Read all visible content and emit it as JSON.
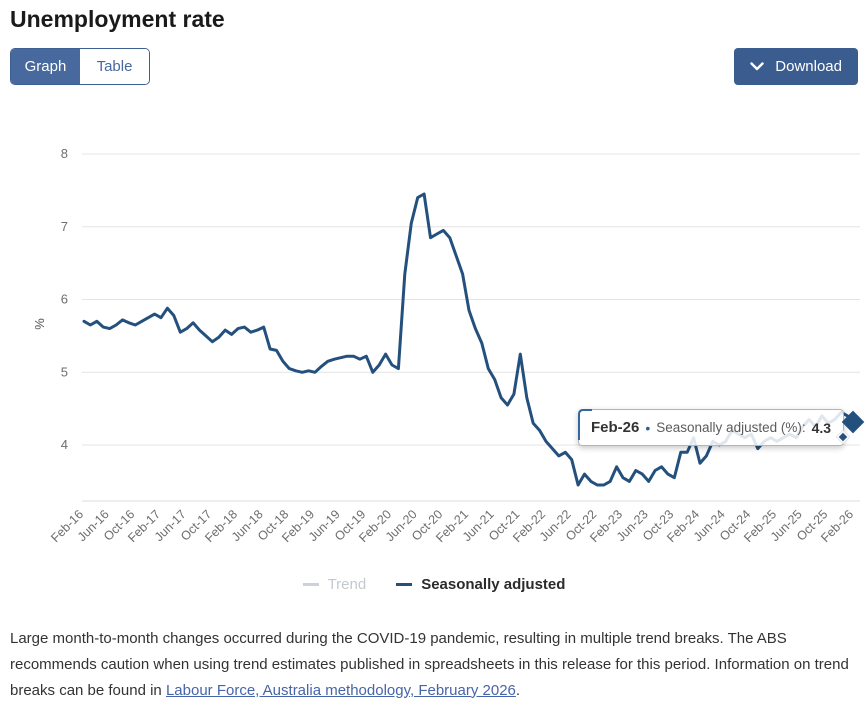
{
  "page": {
    "title": "Unemployment rate"
  },
  "toolbar": {
    "view_toggle": {
      "graph_label": "Graph",
      "table_label": "Table",
      "active": "Graph"
    },
    "download_label": "Download"
  },
  "chart_data": {
    "type": "line",
    "title": "Unemployment rate",
    "ylabel": "%",
    "yticks": [
      4,
      5,
      6,
      7,
      8
    ],
    "ylim": [
      3.2,
      8.4
    ],
    "grid": "horizontal",
    "frequency": "monthly",
    "x_range": [
      "Feb-16",
      "Feb-26"
    ],
    "x_tick_step_months": 4,
    "x_tick_labels": [
      "Feb-16",
      "Jun-16",
      "Oct-16",
      "Feb-17",
      "Jun-17",
      "Oct-17",
      "Feb-18",
      "Jun-18",
      "Oct-18",
      "Feb-19",
      "Jun-19",
      "Oct-19",
      "Feb-20",
      "Jun-20",
      "Oct-20",
      "Feb-21",
      "Jun-21",
      "Oct-21",
      "Feb-22",
      "Jun-22",
      "Oct-22",
      "Feb-23",
      "Jun-23",
      "Oct-23",
      "Feb-24",
      "Jun-24",
      "Oct-24",
      "Feb-25",
      "Jun-25",
      "Oct-25",
      "Feb-26"
    ],
    "legend_position": "bottom",
    "series": [
      {
        "name": "Trend",
        "visible": false,
        "color": "#ccd2d8"
      },
      {
        "name": "Seasonally adjusted",
        "visible": true,
        "unit": "%",
        "color": "#24507d",
        "values": [
          5.7,
          5.65,
          5.7,
          5.62,
          5.6,
          5.65,
          5.72,
          5.68,
          5.65,
          5.7,
          5.75,
          5.8,
          5.75,
          5.88,
          5.78,
          5.55,
          5.6,
          5.68,
          5.58,
          5.5,
          5.42,
          5.48,
          5.58,
          5.52,
          5.6,
          5.62,
          5.55,
          5.58,
          5.62,
          5.32,
          5.3,
          5.15,
          5.05,
          5.02,
          5.0,
          5.02,
          5.0,
          5.08,
          5.15,
          5.18,
          5.2,
          5.22,
          5.22,
          5.18,
          5.22,
          5.0,
          5.1,
          5.25,
          5.1,
          5.05,
          6.35,
          7.05,
          7.4,
          7.45,
          6.85,
          6.9,
          6.95,
          6.85,
          6.6,
          6.35,
          5.85,
          5.6,
          5.4,
          5.05,
          4.9,
          4.65,
          4.55,
          4.7,
          5.25,
          4.65,
          4.3,
          4.2,
          4.05,
          3.95,
          3.85,
          3.9,
          3.8,
          3.45,
          3.6,
          3.5,
          3.45,
          3.45,
          3.5,
          3.7,
          3.55,
          3.5,
          3.65,
          3.6,
          3.5,
          3.65,
          3.7,
          3.6,
          3.55,
          3.9,
          3.9,
          4.1,
          3.75,
          3.85,
          4.05,
          4.0,
          4.05,
          4.2,
          4.15,
          4.1,
          4.15,
          3.95,
          4.05,
          4.1,
          4.05,
          4.1,
          4.15,
          4.1,
          4.25,
          4.35,
          4.25,
          4.4,
          4.3,
          4.35,
          4.45,
          4.4,
          4.3
        ]
      }
    ],
    "end_point": {
      "x": "Feb-26",
      "value": 4.3,
      "marker": "diamond"
    }
  },
  "tooltip": {
    "period": "Feb-26",
    "separator": "•",
    "series_label": "Seasonally adjusted (%):",
    "value": "4.3"
  },
  "legend": {
    "items": [
      {
        "label": "Trend",
        "dimmed": true
      },
      {
        "label": "Seasonally adjusted",
        "dimmed": false
      }
    ]
  },
  "footnote": {
    "text_before_link": "Large month-to-month changes occurred during the COVID-19 pandemic, resulting in multiple trend breaks. The ABS recommends caution when using trend estimates published in spreadsheets in this release for this period. Information on trend breaks can be found in ",
    "link_text": "Labour Force, Australia methodology, February 2026",
    "text_after_link": "."
  },
  "colors": {
    "toggle_blue": "#47699d",
    "download_blue": "#3a5c8e",
    "line_blue": "#24507d",
    "grid_gray": "#e4e4e4",
    "tick_text_gray": "#6e6e6e",
    "link_blue": "#4565a8"
  }
}
